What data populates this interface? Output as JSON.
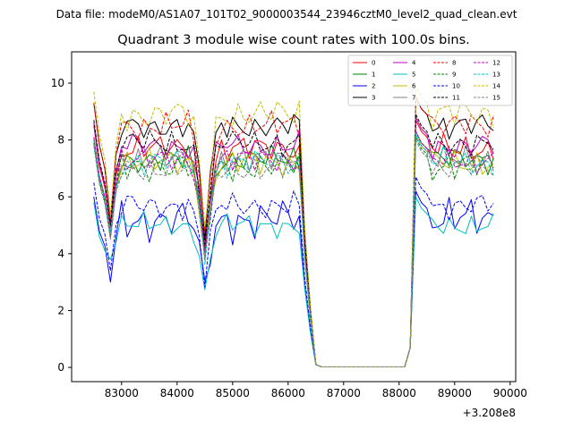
{
  "suptitle": "Data file: modeM0/AS1A07_101T02_9000003544_23946cztM0_level2_quad_clean.evt",
  "chart_data": {
    "type": "line",
    "title": "Quadrant 3 module wise count rates with 100.0s bins.",
    "xlabel": "",
    "ylabel": "",
    "x_offset_label": "+3.208e8",
    "xlim": [
      82100,
      90100
    ],
    "ylim": [
      -0.5,
      11.1
    ],
    "xticks": [
      83000,
      84000,
      85000,
      86000,
      87000,
      88000,
      89000,
      90000
    ],
    "yticks": [
      0,
      2,
      4,
      6,
      8,
      10
    ],
    "legend_position": "top-right",
    "legend_columns": 4,
    "grid": false,
    "x": {
      "start": 82500,
      "step": 100,
      "count": 73
    },
    "gap_start_index": 40,
    "gap_end_index": 57,
    "series": [
      {
        "name": "0",
        "color": "#ff0000",
        "dash": "solid",
        "level": 7.7,
        "dip": 5.0,
        "amp": 0.3,
        "ph": 0.3
      },
      {
        "name": "1",
        "color": "#008000",
        "dash": "solid",
        "level": 7.3,
        "dip": 4.8,
        "amp": 0.3,
        "ph": 1.1
      },
      {
        "name": "2",
        "color": "#0000ff",
        "dash": "solid",
        "level": 5.2,
        "dip": 3.0,
        "amp": 0.45,
        "ph": 2.0
      },
      {
        "name": "3",
        "color": "#000000",
        "dash": "solid",
        "level": 8.5,
        "dip": 5.2,
        "amp": 0.3,
        "ph": 0.7
      },
      {
        "name": "4",
        "color": "#bf00bf",
        "dash": "solid",
        "level": 7.8,
        "dip": 4.9,
        "amp": 0.3,
        "ph": 2.6
      },
      {
        "name": "5",
        "color": "#00bfbf",
        "dash": "solid",
        "level": 5.0,
        "dip": 3.8,
        "amp": 0.25,
        "ph": 1.7
      },
      {
        "name": "6",
        "color": "#bfbf00",
        "dash": "solid",
        "level": 7.2,
        "dip": 4.8,
        "amp": 0.3,
        "ph": 3.3
      },
      {
        "name": "7",
        "color": "#808080",
        "dash": "solid",
        "level": 7.3,
        "dip": 4.6,
        "amp": 0.3,
        "ph": 0.2
      },
      {
        "name": "8",
        "color": "#ff0000",
        "dash": "dashed",
        "level": 8.5,
        "dip": 5.1,
        "amp": 0.3,
        "ph": 1.4
      },
      {
        "name": "9",
        "color": "#008000",
        "dash": "dashed",
        "level": 7.1,
        "dip": 4.6,
        "amp": 0.35,
        "ph": 2.2
      },
      {
        "name": "10",
        "color": "#0000ff",
        "dash": "dashed",
        "level": 5.7,
        "dip": 3.4,
        "amp": 0.3,
        "ph": 0.9
      },
      {
        "name": "11",
        "color": "#000000",
        "dash": "dashed",
        "level": 7.9,
        "dip": 5.0,
        "amp": 0.3,
        "ph": 2.9
      },
      {
        "name": "12",
        "color": "#bf00bf",
        "dash": "dashed",
        "level": 7.3,
        "dip": 4.7,
        "amp": 0.3,
        "ph": 1.9
      },
      {
        "name": "13",
        "color": "#00bfbf",
        "dash": "dashed",
        "level": 7.2,
        "dip": 4.7,
        "amp": 0.3,
        "ph": 0.5
      },
      {
        "name": "14",
        "color": "#bfbf00",
        "dash": "dashed",
        "level": 8.9,
        "dip": 5.3,
        "amp": 0.35,
        "ph": 2.4
      },
      {
        "name": "15",
        "color": "#808080",
        "dash": "dashed",
        "level": 7.0,
        "dip": 4.5,
        "amp": 0.3,
        "ph": 3.0
      }
    ]
  }
}
